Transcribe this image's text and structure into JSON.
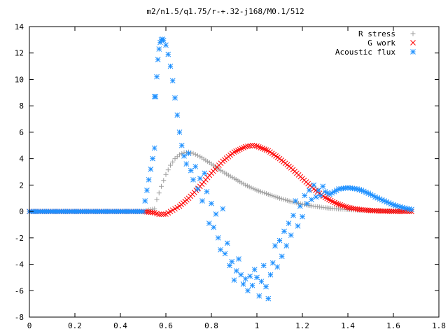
{
  "chart_data": {
    "type": "scatter",
    "title": "m2/n1.5/q1.75/r-+.32-j168/M0.1/512",
    "xlabel": "",
    "ylabel": "",
    "xlim": [
      0,
      1.8
    ],
    "ylim": [
      -8,
      14
    ],
    "xticks": [
      0,
      0.2,
      0.4,
      0.6,
      0.8,
      1,
      1.2,
      1.4,
      1.6,
      1.8
    ],
    "xtick_labels": [
      "0",
      "0.2",
      "0.4",
      "0.6",
      "0.8",
      "1",
      "1.2",
      "1.4",
      "1.6",
      "1.8"
    ],
    "yticks": [
      -8,
      -6,
      -4,
      -2,
      0,
      2,
      4,
      6,
      8,
      10,
      12,
      14
    ],
    "ytick_labels": [
      "-8",
      "-6",
      "-4",
      "-2",
      "0",
      "2",
      "4",
      "6",
      "8",
      "10",
      "12",
      "14"
    ],
    "grid": false,
    "legend_position": "top-right",
    "series": [
      {
        "name": "R stress",
        "marker": "plus",
        "color": "#a0a0a0",
        "x": [
          0,
          0.05,
          0.1,
          0.15,
          0.2,
          0.25,
          0.3,
          0.35,
          0.4,
          0.45,
          0.5,
          0.55,
          0.56,
          0.58,
          0.6,
          0.62,
          0.64,
          0.66,
          0.68,
          0.7,
          0.72,
          0.75,
          0.8,
          0.85,
          0.9,
          0.95,
          1.0,
          1.05,
          1.1,
          1.15,
          1.2,
          1.25,
          1.3,
          1.35,
          1.4,
          1.45,
          1.5,
          1.55,
          1.6,
          1.65,
          1.68
        ],
        "y": [
          0,
          0,
          0,
          0,
          0,
          0,
          0,
          0,
          0,
          0,
          0,
          0.2,
          0.9,
          1.9,
          2.8,
          3.5,
          4.0,
          4.3,
          4.45,
          4.5,
          4.4,
          4.15,
          3.6,
          3.0,
          2.5,
          2.0,
          1.6,
          1.3,
          1.0,
          0.75,
          0.55,
          0.4,
          0.28,
          0.2,
          0.14,
          0.1,
          0.07,
          0.05,
          0.03,
          0.02,
          0.01
        ]
      },
      {
        "name": "G work",
        "marker": "cross",
        "color": "#ff0000",
        "x": [
          0,
          0.05,
          0.1,
          0.15,
          0.2,
          0.25,
          0.3,
          0.35,
          0.4,
          0.45,
          0.5,
          0.55,
          0.57,
          0.6,
          0.63,
          0.66,
          0.7,
          0.75,
          0.8,
          0.85,
          0.9,
          0.95,
          0.98,
          1.0,
          1.05,
          1.1,
          1.15,
          1.2,
          1.25,
          1.3,
          1.35,
          1.4,
          1.45,
          1.5,
          1.55,
          1.6,
          1.65,
          1.68
        ],
        "y": [
          0,
          0,
          0,
          0,
          0,
          0,
          0,
          0,
          0,
          0,
          0,
          -0.1,
          -0.22,
          -0.2,
          0.1,
          0.4,
          1.0,
          1.9,
          2.9,
          3.8,
          4.5,
          4.9,
          5.0,
          4.95,
          4.6,
          4.0,
          3.3,
          2.5,
          1.7,
          1.05,
          0.6,
          0.3,
          0.15,
          0.07,
          0.03,
          0.01,
          0.0,
          0.0
        ]
      },
      {
        "name": "Acoustic flux",
        "marker": "star",
        "color": "#1e90ff",
        "x": [
          0,
          0.05,
          0.1,
          0.15,
          0.2,
          0.25,
          0.3,
          0.35,
          0.4,
          0.45,
          0.5,
          0.55,
          0.55,
          0.555,
          0.56,
          0.565,
          0.57,
          0.575,
          0.58,
          0.585,
          0.59,
          0.6,
          0.61,
          0.62,
          0.63,
          0.64,
          0.65,
          0.66,
          0.67,
          0.68,
          0.69,
          0.7,
          0.71,
          0.72,
          0.73,
          0.74,
          0.75,
          0.76,
          0.77,
          0.78,
          0.79,
          0.8,
          0.81,
          0.82,
          0.83,
          0.84,
          0.85,
          0.86,
          0.87,
          0.88,
          0.89,
          0.9,
          0.91,
          0.92,
          0.93,
          0.94,
          0.95,
          0.96,
          0.97,
          0.98,
          0.99,
          1.0,
          1.01,
          1.02,
          1.03,
          1.04,
          1.05,
          1.06,
          1.07,
          1.08,
          1.09,
          1.1,
          1.11,
          1.12,
          1.13,
          1.14,
          1.15,
          1.16,
          1.17,
          1.18,
          1.19,
          1.2,
          1.21,
          1.22,
          1.23,
          1.24,
          1.25,
          1.26,
          1.27,
          1.28,
          1.29,
          1.3,
          1.32,
          1.34,
          1.36,
          1.38,
          1.4,
          1.42,
          1.44,
          1.46,
          1.48,
          1.5,
          1.52,
          1.54,
          1.56,
          1.58,
          1.6,
          1.62,
          1.64,
          1.66,
          1.68
        ],
        "y": [
          0,
          0,
          0,
          0,
          0,
          0,
          0,
          0,
          0,
          0,
          0,
          4.8,
          8.7,
          8.7,
          10.2,
          11.5,
          12.3,
          12.8,
          13.0,
          13.05,
          12.95,
          12.6,
          11.9,
          11.0,
          9.9,
          8.6,
          7.3,
          6.0,
          5.0,
          4.2,
          3.6,
          4.4,
          3.1,
          2.4,
          3.4,
          1.7,
          2.5,
          0.8,
          2.9,
          1.5,
          -0.9,
          0.6,
          -1.2,
          -0.2,
          -2.0,
          -2.9,
          0.2,
          -3.2,
          -2.4,
          -4.1,
          -3.8,
          -5.2,
          -4.5,
          -3.6,
          -4.8,
          -5.5,
          -5.1,
          -6.0,
          -4.9,
          -5.6,
          -4.4,
          -5.0,
          -6.4,
          -5.3,
          -4.1,
          -5.7,
          -6.6,
          -4.8,
          -3.9,
          -2.6,
          -4.2,
          -2.2,
          -3.4,
          -1.5,
          -2.6,
          -0.9,
          -1.8,
          -0.3,
          0.8,
          -1.1,
          0.4,
          -0.4,
          1.2,
          0.6,
          1.6,
          0.9,
          2.0,
          1.1,
          1.6,
          1.2,
          1.9,
          1.5,
          1.3,
          1.5,
          1.7,
          1.75,
          1.8,
          1.75,
          1.7,
          1.6,
          1.45,
          1.3,
          1.1,
          0.95,
          0.8,
          0.65,
          0.5,
          0.4,
          0.3,
          0.22,
          0.15
        ]
      }
    ]
  }
}
